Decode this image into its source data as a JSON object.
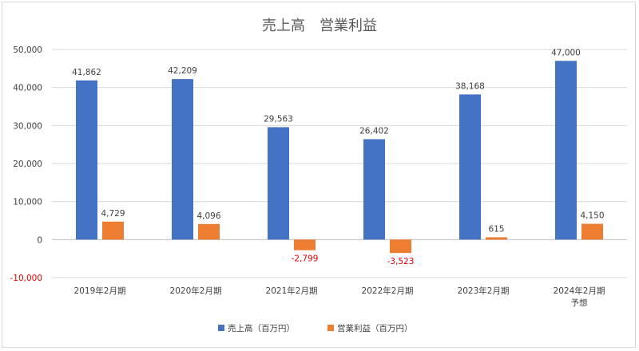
{
  "chart_data": {
    "type": "bar",
    "title": "売上高　営業利益",
    "categories": [
      "2019年2月期",
      "2020年2月期",
      "2021年2月期",
      "2022年2月期",
      "2023年2月期",
      "2024年2月期\n予想"
    ],
    "series": [
      {
        "name": "売上高（百万円）",
        "color": "#4472c4",
        "values": [
          41862,
          42209,
          29563,
          26402,
          38168,
          47000
        ]
      },
      {
        "name": "営業利益（百万円）",
        "color": "#ed7d31",
        "values": [
          4729,
          4096,
          -2799,
          -3523,
          615,
          4150
        ]
      }
    ],
    "data_labels": [
      [
        "41,862",
        "42,209",
        "29,563",
        "26,402",
        "38,168",
        "47,000"
      ],
      [
        "4,729",
        "4,096",
        "-2,799",
        "-3,523",
        "615",
        "4,150"
      ]
    ],
    "y_ticks": [
      "50,000",
      "40,000",
      "30,000",
      "20,000",
      "10,000",
      "0",
      "-10,000"
    ],
    "y_tick_values": [
      50000,
      40000,
      30000,
      20000,
      10000,
      0,
      -10000
    ],
    "ylim": [
      -10000,
      50000
    ],
    "negative_label_color": "#e00000",
    "grid": true,
    "legend_position": "bottom"
  }
}
